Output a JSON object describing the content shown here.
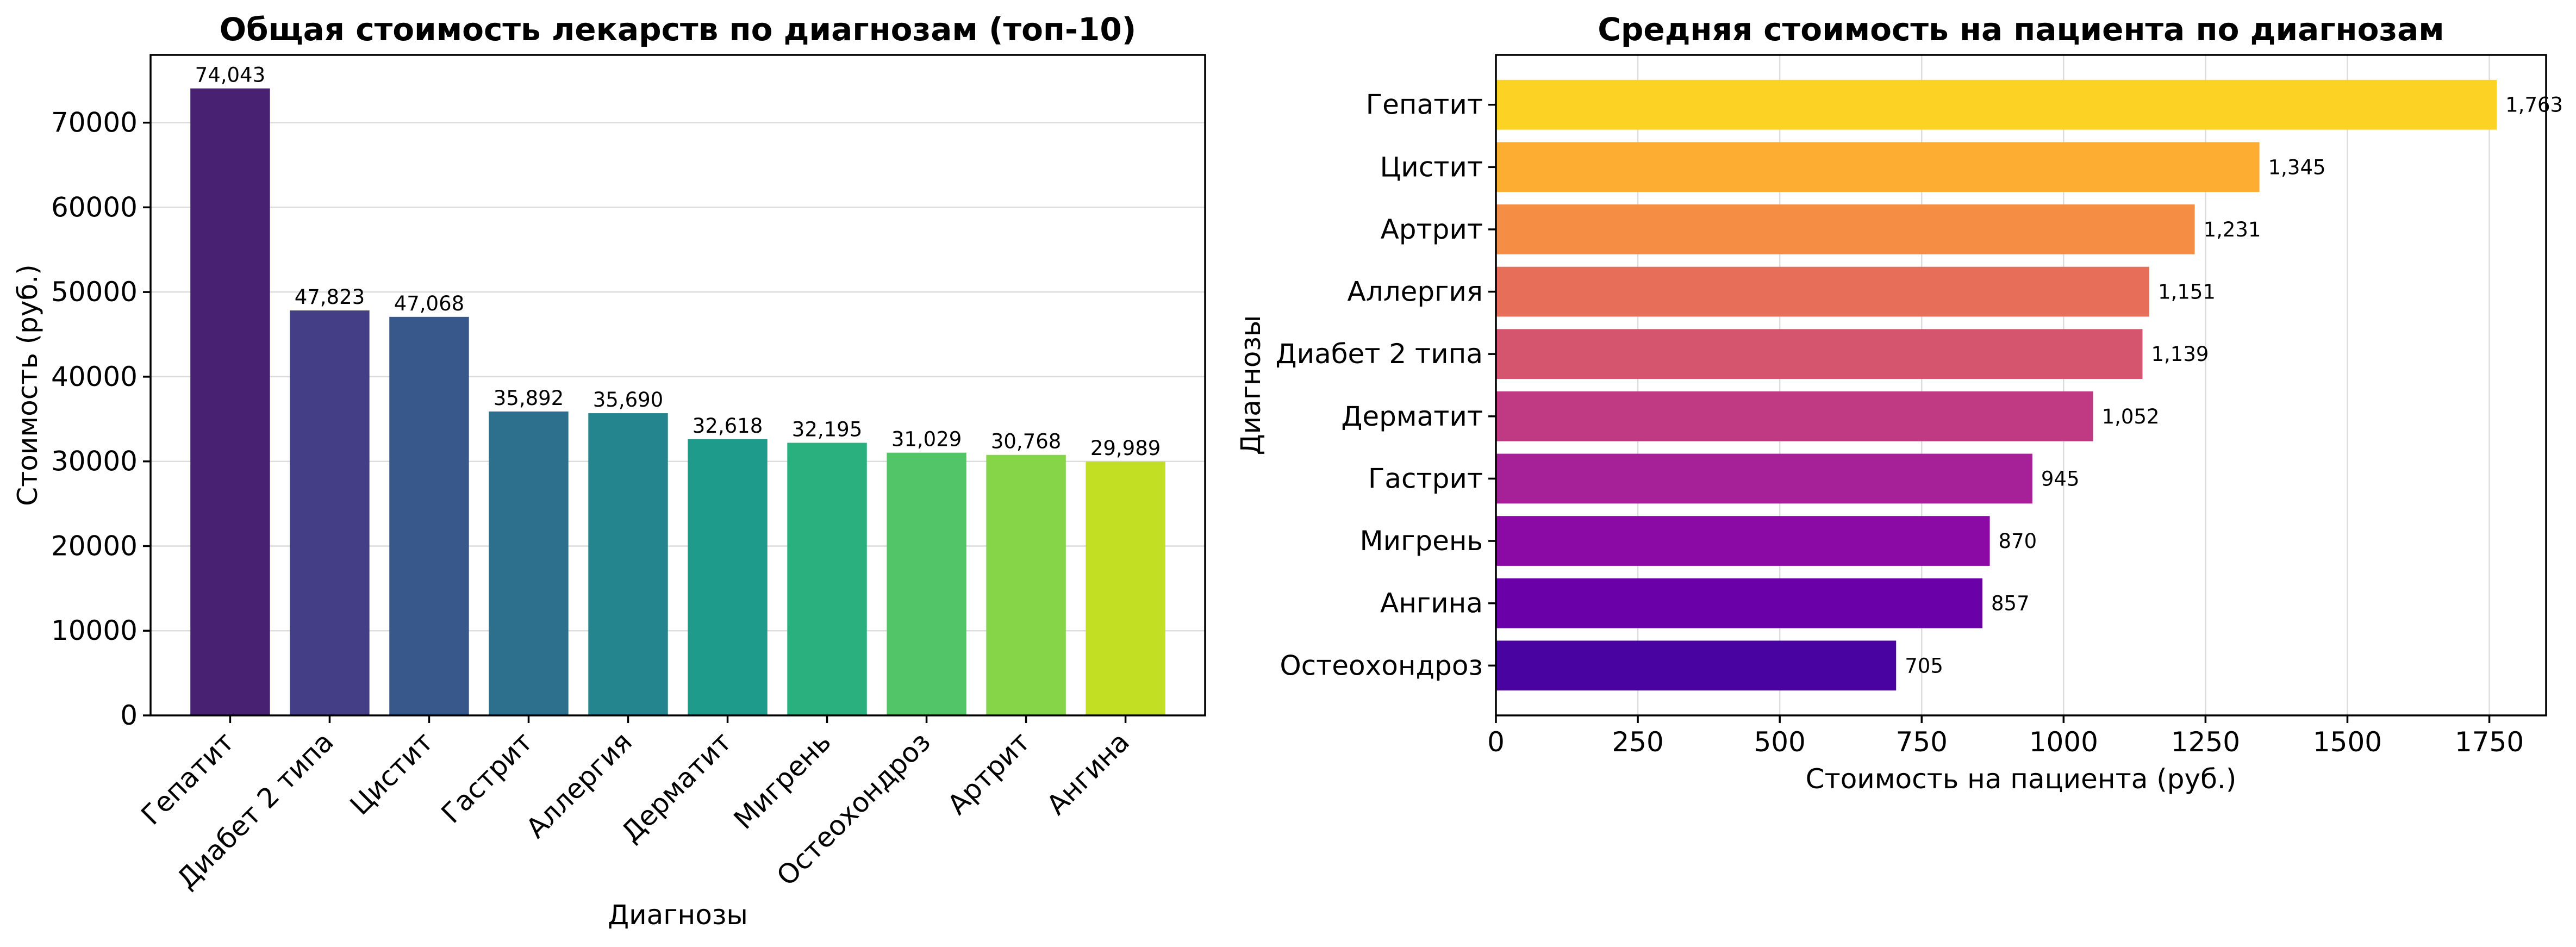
{
  "chart_data": [
    {
      "type": "bar",
      "title": "Общая стоимость лекарств по диагнозам (топ-10)",
      "xlabel": "Диагнозы",
      "ylabel": "Стоимость (руб.)",
      "ylim": [
        0,
        78000
      ],
      "yticks": [
        0,
        10000,
        20000,
        30000,
        40000,
        50000,
        60000,
        70000
      ],
      "ytick_labels": [
        "0",
        "10000",
        "20000",
        "30000",
        "40000",
        "50000",
        "60000",
        "70000"
      ],
      "grid": "y",
      "categories": [
        "Гепатит",
        "Диабет 2 типа",
        "Цистит",
        "Гастрит",
        "Аллергия",
        "Дерматит",
        "Мигрень",
        "Остеохондроз",
        "Артрит",
        "Ангина"
      ],
      "values": [
        74043,
        47823,
        47068,
        35892,
        35690,
        32618,
        32195,
        31029,
        30768,
        29989
      ],
      "value_labels": [
        "74,043",
        "47,823",
        "47,068",
        "35,892",
        "35,690",
        "32,618",
        "32,195",
        "31,029",
        "30,768",
        "29,989"
      ],
      "colors": [
        "#482173",
        "#433e85",
        "#38588c",
        "#2d708e",
        "#25858e",
        "#1e9b8a",
        "#2ab07f",
        "#52c569",
        "#86d549",
        "#c2df23"
      ]
    },
    {
      "type": "bar",
      "orientation": "horizontal",
      "title": "Средняя стоимость на пациента по диагнозам",
      "xlabel": "Стоимость на пациента (руб.)",
      "ylabel": "Диагнозы",
      "xlim": [
        0,
        1850
      ],
      "xticks": [
        0,
        250,
        500,
        750,
        1000,
        1250,
        1500,
        1750
      ],
      "xtick_labels": [
        "0",
        "250",
        "500",
        "750",
        "1000",
        "1250",
        "1500",
        "1750"
      ],
      "grid": "x",
      "categories": [
        "Гепатит",
        "Цистит",
        "Артрит",
        "Аллергия",
        "Диабет 2 типа",
        "Дерматит",
        "Гастрит",
        "Мигрень",
        "Ангина",
        "Остеохондроз"
      ],
      "values": [
        1763,
        1345,
        1231,
        1151,
        1139,
        1052,
        945,
        870,
        857,
        705
      ],
      "value_labels": [
        "1,763",
        "1,345",
        "1,231",
        "1,151",
        "1,139",
        "1,052",
        "945",
        "870",
        "857",
        "705"
      ],
      "colors": [
        "#fcd225",
        "#fdad32",
        "#f68d45",
        "#e76f5a",
        "#d5546e",
        "#c03a83",
        "#a62098",
        "#8b0aa5",
        "#6a00a8",
        "#4903a0"
      ]
    }
  ]
}
